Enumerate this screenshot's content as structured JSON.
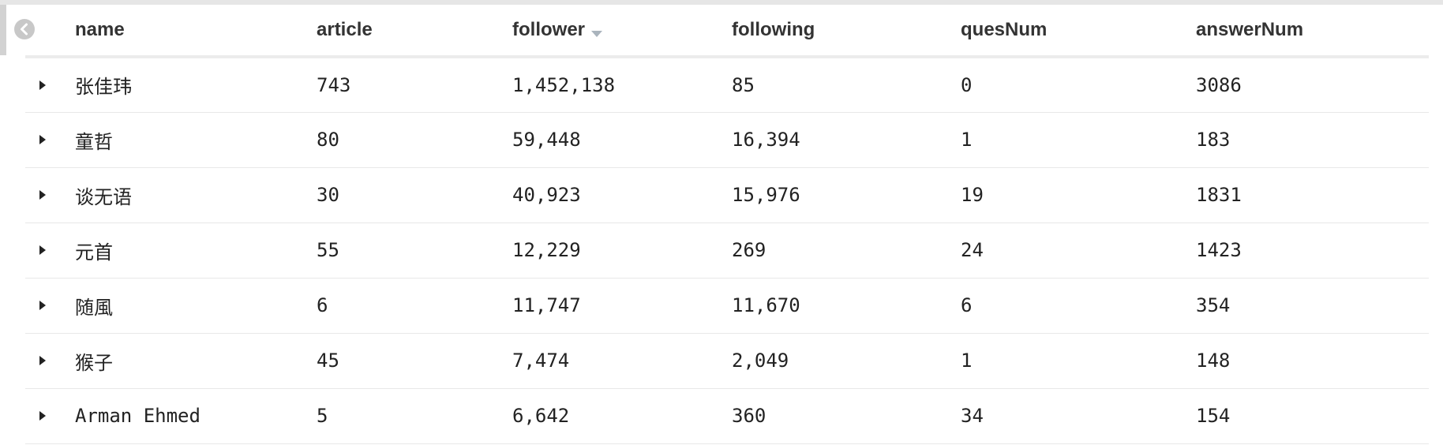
{
  "table": {
    "columns": [
      {
        "key": "name",
        "label": "name"
      },
      {
        "key": "article",
        "label": "article"
      },
      {
        "key": "follower",
        "label": "follower",
        "sorted": "descending"
      },
      {
        "key": "following",
        "label": "following"
      },
      {
        "key": "quesNum",
        "label": "quesNum"
      },
      {
        "key": "answerNum",
        "label": "answerNum"
      }
    ],
    "rows": [
      {
        "name": "张佳玮",
        "article": "743",
        "follower": "1,452,138",
        "following": "85",
        "quesNum": "0",
        "answerNum": "3086"
      },
      {
        "name": "童哲",
        "article": "80",
        "follower": "59,448",
        "following": "16,394",
        "quesNum": "1",
        "answerNum": "183"
      },
      {
        "name": "谈无语",
        "article": "30",
        "follower": "40,923",
        "following": "15,976",
        "quesNum": "19",
        "answerNum": "1831"
      },
      {
        "name": "元首",
        "article": "55",
        "follower": "12,229",
        "following": "269",
        "quesNum": "24",
        "answerNum": "1423"
      },
      {
        "name": "随風",
        "article": "6",
        "follower": "11,747",
        "following": "11,670",
        "quesNum": "6",
        "answerNum": "354"
      },
      {
        "name": "猴子",
        "article": "45",
        "follower": "7,474",
        "following": "2,049",
        "quesNum": "1",
        "answerNum": "148"
      },
      {
        "name": "Arman Ehmed",
        "article": "5",
        "follower": "6,642",
        "following": "360",
        "quesNum": "34",
        "answerNum": "154"
      }
    ]
  },
  "icons": {
    "collapse": "chevron-left-circle-icon",
    "row_toggle": "caret-right-icon",
    "sort": "caret-down-icon"
  },
  "colors": {
    "header_text": "#333333",
    "cell_text": "#222222",
    "sort_caret": "#aab4bd",
    "collapse_button": "#c8c8c8"
  }
}
